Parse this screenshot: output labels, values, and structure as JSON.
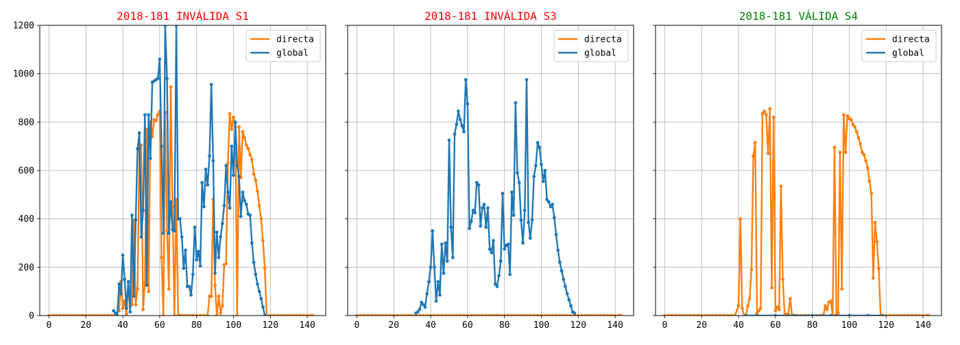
{
  "colors": {
    "directa": "#ff7f0e",
    "global": "#1f77b4",
    "invalid_title": "#ff0000",
    "valid_title": "#008000",
    "grid": "#b0b0b0"
  },
  "chart_data": [
    {
      "type": "line",
      "title": "2018-181 INVÁLIDA S1",
      "title_color": "#ff0000",
      "xlim": [
        -5,
        150
      ],
      "ylim": [
        0,
        1200
      ],
      "xticks": [
        0,
        20,
        40,
        60,
        80,
        100,
        120,
        140
      ],
      "yticks": [
        0,
        200,
        400,
        600,
        800,
        1000,
        1200
      ],
      "show_ytick_labels": true,
      "grid": true,
      "legend": "top-right",
      "series": [
        {
          "name": "directa",
          "color": "#ff7f0e",
          "x": [
            0,
            2,
            4,
            6,
            8,
            10,
            12,
            14,
            16,
            18,
            20,
            22,
            24,
            26,
            28,
            30,
            32,
            34,
            36,
            38,
            39,
            40,
            41,
            42,
            43,
            44,
            45,
            46,
            47,
            48,
            49,
            50,
            51,
            52,
            53,
            54,
            55,
            56,
            57,
            58,
            59,
            60,
            61,
            62,
            63,
            64,
            65,
            66,
            67,
            68,
            69,
            70,
            71,
            72,
            74,
            76,
            78,
            80,
            82,
            84,
            86,
            87,
            88,
            89,
            90,
            91,
            92,
            93,
            94,
            95,
            96,
            97,
            98,
            99,
            100,
            101,
            102,
            103,
            104,
            105,
            106,
            107,
            108,
            109,
            110,
            111,
            112,
            113,
            114,
            115,
            116,
            117,
            118,
            120,
            122,
            124,
            126,
            128,
            130,
            132,
            134,
            136,
            138,
            140,
            142,
            143
          ],
          "y": [
            0,
            0,
            0,
            0,
            0,
            0,
            0,
            0,
            0,
            0,
            0,
            0,
            0,
            0,
            0,
            0,
            0,
            0,
            0,
            20,
            140,
            30,
            60,
            5,
            140,
            40,
            45,
            395,
            45,
            110,
            680,
            705,
            25,
            135,
            770,
            100,
            800,
            740,
            810,
            805,
            830,
            845,
            240,
            0,
            840,
            350,
            110,
            945,
            450,
            0,
            480,
            0,
            0,
            0,
            0,
            0,
            0,
            0,
            0,
            0,
            0,
            80,
            80,
            480,
            125,
            0,
            80,
            10,
            40,
            210,
            215,
            630,
            835,
            770,
            820,
            780,
            0,
            780,
            570,
            760,
            735,
            705,
            690,
            665,
            645,
            585,
            560,
            515,
            455,
            400,
            310,
            195,
            0,
            0,
            0,
            0,
            0,
            0,
            0,
            0,
            0,
            0,
            0,
            0,
            0,
            0
          ]
        },
        {
          "name": "global",
          "color": "#1f77b4",
          "x": [
            35,
            36,
            37,
            38,
            39,
            40,
            41,
            42,
            43,
            44,
            45,
            46,
            47,
            48,
            49,
            50,
            51,
            52,
            53,
            54,
            55,
            56,
            57,
            58,
            59,
            60,
            61,
            62,
            63,
            64,
            65,
            66,
            67,
            68,
            69,
            70,
            71,
            72,
            73,
            74,
            75,
            76,
            77,
            78,
            79,
            80,
            81,
            82,
            83,
            84,
            85,
            86,
            87,
            88,
            89,
            90,
            91,
            92,
            93,
            94,
            95,
            96,
            97,
            98,
            99,
            100,
            101,
            102,
            103,
            104,
            105,
            106,
            107,
            108,
            109,
            110,
            111,
            112,
            113,
            114,
            115,
            116,
            117
          ],
          "y": [
            20,
            10,
            0,
            130,
            90,
            250,
            150,
            30,
            140,
            15,
            415,
            80,
            395,
            690,
            755,
            325,
            435,
            830,
            125,
            830,
            650,
            965,
            970,
            975,
            980,
            1060,
            700,
            340,
            1200,
            980,
            340,
            470,
            355,
            350,
            1200,
            400,
            400,
            325,
            195,
            270,
            120,
            120,
            85,
            170,
            365,
            230,
            265,
            205,
            550,
            450,
            605,
            540,
            660,
            955,
            640,
            175,
            345,
            240,
            325,
            380,
            455,
            620,
            510,
            445,
            700,
            580,
            800,
            620,
            575,
            410,
            510,
            475,
            460,
            420,
            415,
            300,
            220,
            170,
            130,
            100,
            70,
            35,
            0
          ]
        }
      ]
    },
    {
      "type": "line",
      "title": "2018-181 INVÁLIDA S3",
      "title_color": "#ff0000",
      "xlim": [
        -5,
        150
      ],
      "ylim": [
        0,
        1200
      ],
      "xticks": [
        0,
        20,
        40,
        60,
        80,
        100,
        120,
        140
      ],
      "yticks": [
        0,
        200,
        400,
        600,
        800,
        1000,
        1200
      ],
      "show_ytick_labels": false,
      "grid": true,
      "legend": "top-right",
      "series": [
        {
          "name": "directa",
          "color": "#ff7f0e",
          "x": [
            0,
            2,
            4,
            6,
            8,
            10,
            12,
            14,
            16,
            18,
            20,
            22,
            24,
            26,
            28,
            30,
            32,
            34,
            36,
            38,
            40,
            42,
            44,
            46,
            48,
            50,
            52,
            54,
            56,
            58,
            60,
            62,
            64,
            66,
            68,
            70,
            72,
            74,
            76,
            78,
            80,
            82,
            84,
            86,
            88,
            90,
            92,
            94,
            96,
            98,
            100,
            102,
            104,
            106,
            108,
            110,
            112,
            114,
            116,
            118,
            120,
            122,
            124,
            126,
            128,
            130,
            132,
            134,
            136,
            138,
            140,
            142,
            143
          ],
          "y": [
            0,
            0,
            0,
            0,
            0,
            0,
            0,
            0,
            0,
            0,
            0,
            0,
            0,
            0,
            0,
            0,
            0,
            0,
            0,
            0,
            0,
            0,
            0,
            0,
            0,
            0,
            0,
            0,
            0,
            0,
            0,
            0,
            0,
            0,
            0,
            0,
            0,
            0,
            0,
            0,
            0,
            0,
            0,
            0,
            0,
            0,
            0,
            0,
            0,
            0,
            0,
            0,
            0,
            0,
            0,
            0,
            0,
            0,
            0,
            0,
            0,
            0,
            0,
            0,
            0,
            0,
            0,
            0,
            0,
            0,
            0,
            0,
            0
          ]
        },
        {
          "name": "global",
          "color": "#1f77b4",
          "x": [
            32,
            33,
            34,
            35,
            36,
            37,
            38,
            39,
            40,
            41,
            42,
            43,
            44,
            45,
            46,
            47,
            48,
            49,
            50,
            51,
            52,
            53,
            54,
            55,
            56,
            57,
            58,
            59,
            60,
            61,
            62,
            63,
            64,
            65,
            66,
            67,
            68,
            69,
            70,
            71,
            72,
            73,
            74,
            75,
            76,
            77,
            78,
            79,
            80,
            81,
            82,
            83,
            84,
            85,
            86,
            87,
            88,
            89,
            90,
            91,
            92,
            93,
            94,
            95,
            96,
            97,
            98,
            99,
            100,
            101,
            102,
            103,
            104,
            105,
            106,
            107,
            108,
            109,
            110,
            111,
            112,
            113,
            114,
            115,
            116,
            117,
            118
          ],
          "y": [
            10,
            15,
            25,
            55,
            45,
            35,
            90,
            140,
            200,
            350,
            200,
            60,
            140,
            85,
            295,
            175,
            300,
            225,
            725,
            365,
            240,
            750,
            790,
            845,
            810,
            785,
            760,
            975,
            875,
            360,
            390,
            435,
            425,
            550,
            540,
            370,
            445,
            460,
            365,
            445,
            275,
            260,
            310,
            130,
            120,
            165,
            225,
            505,
            275,
            290,
            295,
            170,
            510,
            415,
            880,
            590,
            550,
            395,
            300,
            435,
            975,
            385,
            320,
            395,
            575,
            620,
            715,
            695,
            625,
            555,
            600,
            480,
            470,
            450,
            460,
            405,
            335,
            270,
            220,
            185,
            150,
            120,
            90,
            65,
            40,
            15,
            10
          ]
        }
      ]
    },
    {
      "type": "line",
      "title": "2018-181 VÁLIDA S4",
      "title_color": "#008000",
      "xlim": [
        -5,
        150
      ],
      "ylim": [
        0,
        1200
      ],
      "xticks": [
        0,
        20,
        40,
        60,
        80,
        100,
        120,
        140
      ],
      "yticks": [
        0,
        200,
        400,
        600,
        800,
        1000,
        1200
      ],
      "show_ytick_labels": false,
      "grid": true,
      "legend": "top-right",
      "series": [
        {
          "name": "directa",
          "color": "#ff7f0e",
          "x": [
            0,
            2,
            4,
            6,
            8,
            10,
            12,
            14,
            16,
            18,
            20,
            22,
            24,
            26,
            28,
            30,
            32,
            34,
            36,
            38,
            40,
            41,
            42,
            43,
            44,
            45,
            46,
            47,
            48,
            49,
            50,
            51,
            52,
            53,
            54,
            55,
            56,
            57,
            58,
            59,
            60,
            61,
            62,
            63,
            64,
            65,
            66,
            67,
            68,
            69,
            70,
            71,
            72,
            74,
            76,
            78,
            80,
            82,
            84,
            85,
            86,
            87,
            88,
            89,
            90,
            91,
            92,
            93,
            94,
            95,
            96,
            97,
            98,
            99,
            100,
            101,
            102,
            103,
            104,
            105,
            106,
            107,
            108,
            109,
            110,
            111,
            112,
            113,
            114,
            115,
            116,
            117,
            118,
            120,
            122,
            124,
            126,
            128,
            130,
            132,
            134,
            136,
            138,
            140,
            142,
            143
          ],
          "y": [
            0,
            0,
            0,
            0,
            0,
            0,
            0,
            0,
            0,
            0,
            0,
            0,
            0,
            0,
            0,
            0,
            0,
            0,
            0,
            0,
            40,
            400,
            30,
            0,
            0,
            40,
            70,
            190,
            660,
            715,
            10,
            20,
            30,
            835,
            845,
            830,
            670,
            855,
            115,
            820,
            20,
            35,
            25,
            535,
            150,
            0,
            5,
            5,
            70,
            0,
            0,
            0,
            0,
            0,
            0,
            0,
            0,
            0,
            0,
            0,
            0,
            40,
            25,
            55,
            60,
            0,
            695,
            5,
            10,
            675,
            110,
            830,
            675,
            825,
            815,
            810,
            790,
            780,
            760,
            735,
            710,
            675,
            665,
            640,
            610,
            555,
            505,
            155,
            385,
            305,
            195,
            0,
            0,
            0,
            0,
            0,
            0,
            0,
            0,
            0,
            0,
            0,
            0,
            0,
            0,
            0
          ]
        },
        {
          "name": "global",
          "color": "#1f77b4",
          "x": [
            44,
            50,
            60,
            70,
            80,
            90,
            100,
            110,
            118
          ],
          "y": [
            0,
            0,
            0,
            0,
            0,
            0,
            0,
            0,
            0
          ]
        }
      ]
    }
  ]
}
